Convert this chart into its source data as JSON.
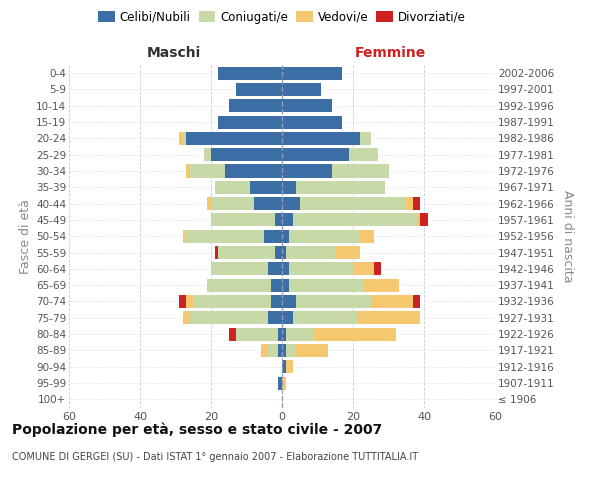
{
  "age_groups": [
    "100+",
    "95-99",
    "90-94",
    "85-89",
    "80-84",
    "75-79",
    "70-74",
    "65-69",
    "60-64",
    "55-59",
    "50-54",
    "45-49",
    "40-44",
    "35-39",
    "30-34",
    "25-29",
    "20-24",
    "15-19",
    "10-14",
    "5-9",
    "0-4"
  ],
  "birth_years": [
    "≤ 1906",
    "1907-1911",
    "1912-1916",
    "1917-1921",
    "1922-1926",
    "1927-1931",
    "1932-1936",
    "1937-1941",
    "1942-1946",
    "1947-1951",
    "1952-1956",
    "1957-1961",
    "1962-1966",
    "1967-1971",
    "1972-1976",
    "1977-1981",
    "1982-1986",
    "1987-1991",
    "1992-1996",
    "1997-2001",
    "2002-2006"
  ],
  "maschi": {
    "celibi": [
      0,
      1,
      0,
      1,
      1,
      4,
      3,
      3,
      4,
      2,
      5,
      2,
      8,
      9,
      16,
      20,
      27,
      18,
      15,
      13,
      18
    ],
    "coniugati": [
      0,
      0,
      0,
      3,
      12,
      22,
      22,
      18,
      16,
      16,
      22,
      18,
      12,
      10,
      10,
      2,
      1,
      0,
      0,
      0,
      0
    ],
    "vedovi": [
      0,
      0,
      0,
      2,
      0,
      2,
      2,
      0,
      0,
      0,
      1,
      0,
      1,
      0,
      1,
      0,
      1,
      0,
      0,
      0,
      0
    ],
    "divorziati": [
      0,
      0,
      0,
      0,
      2,
      0,
      2,
      0,
      0,
      1,
      0,
      0,
      0,
      0,
      0,
      0,
      0,
      0,
      0,
      0,
      0
    ]
  },
  "femmine": {
    "nubili": [
      0,
      0,
      1,
      1,
      1,
      3,
      4,
      2,
      2,
      1,
      2,
      3,
      5,
      4,
      14,
      19,
      22,
      17,
      14,
      11,
      17
    ],
    "coniugate": [
      0,
      0,
      0,
      3,
      8,
      18,
      21,
      21,
      18,
      14,
      20,
      35,
      30,
      25,
      16,
      8,
      3,
      0,
      0,
      0,
      0
    ],
    "vedove": [
      0,
      1,
      2,
      9,
      23,
      18,
      12,
      10,
      6,
      7,
      4,
      1,
      2,
      0,
      0,
      0,
      0,
      0,
      0,
      0,
      0
    ],
    "divorziate": [
      0,
      0,
      0,
      0,
      0,
      0,
      2,
      0,
      2,
      0,
      0,
      2,
      2,
      0,
      0,
      0,
      0,
      0,
      0,
      0,
      0
    ]
  },
  "colors": {
    "celibi": "#3a6ea5",
    "coniugati": "#c8d9a8",
    "vedovi": "#f5c870",
    "divorziati": "#cc2222"
  },
  "xlim": 60,
  "title": "Popolazione per età, sesso e stato civile - 2007",
  "subtitle": "COMUNE DI GERGEI (SU) - Dati ISTAT 1° gennaio 2007 - Elaborazione TUTTITALIA.IT",
  "ylabel": "Fasce di età",
  "right_ylabel": "Anni di nascita",
  "legend_labels": [
    "Celibi/Nubili",
    "Coniugati/e",
    "Vedovi/e",
    "Divorziati/e"
  ],
  "maschi_label": "Maschi",
  "femmine_label": "Femmine",
  "maschi_color": "#333333",
  "femmine_color": "#cc2222"
}
